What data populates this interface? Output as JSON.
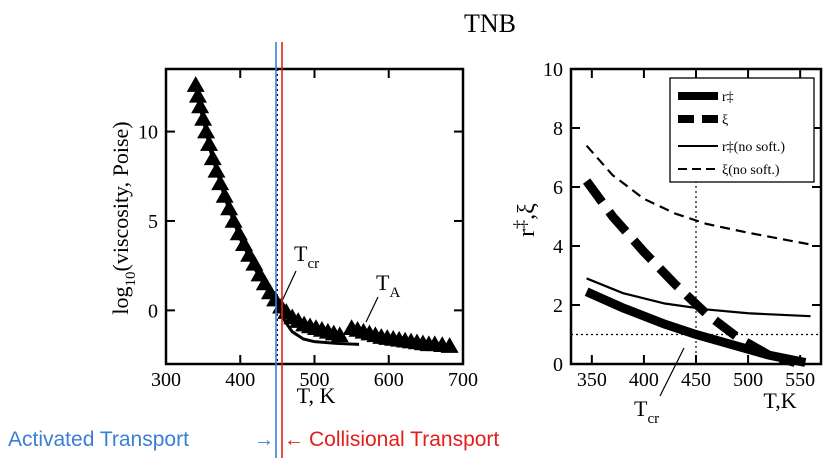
{
  "figure_title": "TNB",
  "colors": {
    "activated": "#3a7fd5",
    "collisional": "#e0201b",
    "ink": "#000000"
  },
  "annotations": {
    "activated": "Activated Transport",
    "collisional": "Collisional Transport",
    "arrow_left": "→",
    "arrow_right": "←"
  },
  "chart_data": [
    {
      "type": "scatter",
      "title": "",
      "xlabel": "T, K",
      "ylabel": "log10(viscosity, Poise)",
      "ylabel_parts": {
        "pre": "log",
        "sub": "10",
        "post": "(viscosity, Poise)"
      },
      "xlim": [
        300,
        700
      ],
      "ylim": [
        -3,
        13.5
      ],
      "xticks": [
        300,
        400,
        500,
        600,
        700
      ],
      "yticks": [
        0,
        5,
        10
      ],
      "points": [
        [
          340,
          12.6
        ],
        [
          343,
          12.0
        ],
        [
          346,
          11.4
        ],
        [
          350,
          10.7
        ],
        [
          354,
          10.0
        ],
        [
          358,
          9.3
        ],
        [
          363,
          8.5
        ],
        [
          368,
          7.8
        ],
        [
          373,
          7.1
        ],
        [
          379,
          6.4
        ],
        [
          385,
          5.7
        ],
        [
          391,
          5.0
        ],
        [
          398,
          4.3
        ],
        [
          405,
          3.7
        ],
        [
          412,
          3.1
        ],
        [
          419,
          2.6
        ],
        [
          426,
          2.0
        ],
        [
          433,
          1.5
        ],
        [
          440,
          1.0
        ],
        [
          447,
          0.6
        ],
        [
          455,
          0.2
        ],
        [
          462,
          -0.1
        ],
        [
          470,
          -0.4
        ],
        [
          478,
          -0.6
        ],
        [
          486,
          -0.8
        ],
        [
          494,
          -0.9
        ],
        [
          502,
          -1.0
        ],
        [
          510,
          -1.1
        ],
        [
          518,
          -1.2
        ],
        [
          526,
          -1.3
        ],
        [
          534,
          -1.4
        ],
        [
          550,
          -1.0
        ],
        [
          558,
          -1.1
        ],
        [
          566,
          -1.2
        ],
        [
          574,
          -1.3
        ],
        [
          582,
          -1.4
        ],
        [
          590,
          -1.5
        ],
        [
          598,
          -1.55
        ],
        [
          606,
          -1.6
        ],
        [
          614,
          -1.65
        ],
        [
          622,
          -1.7
        ],
        [
          630,
          -1.75
        ],
        [
          638,
          -1.8
        ],
        [
          646,
          -1.85
        ],
        [
          654,
          -1.9
        ],
        [
          662,
          -1.9
        ],
        [
          672,
          -1.95
        ],
        [
          682,
          -2.0
        ]
      ],
      "fit_curve": [
        [
          340,
          12.4
        ],
        [
          360,
          8.9
        ],
        [
          380,
          6.2
        ],
        [
          400,
          4.0
        ],
        [
          420,
          2.3
        ],
        [
          440,
          0.9
        ],
        [
          452,
          0.3
        ],
        [
          460,
          -0.6
        ],
        [
          470,
          -1.2
        ],
        [
          485,
          -1.6
        ],
        [
          500,
          -1.75
        ],
        [
          530,
          -1.85
        ],
        [
          560,
          -1.9
        ]
      ],
      "vline_dotted": 450,
      "labels": {
        "tcr": {
          "base": "T",
          "sub": "cr"
        },
        "ta": {
          "base": "T",
          "sub": "A"
        }
      }
    },
    {
      "type": "line",
      "title": "",
      "xlabel": "T,K",
      "ylabel_parts": {
        "r": "r",
        "dagger": "‡",
        "sep": ",",
        "xi": "ξ"
      },
      "xlim": [
        330,
        570
      ],
      "ylim": [
        0,
        10
      ],
      "xticks": [
        350,
        400,
        450,
        500,
        550
      ],
      "yticks": [
        0,
        2,
        4,
        6,
        8,
        10
      ],
      "vline_dotted": 450,
      "hline_dotted": 1,
      "series": [
        {
          "name": "r‡",
          "style": "thick-solid",
          "points": [
            [
              345,
              2.45
            ],
            [
              380,
              1.9
            ],
            [
              420,
              1.35
            ],
            [
              450,
              1.0
            ],
            [
              480,
              0.7
            ],
            [
              520,
              0.3
            ],
            [
              555,
              0.05
            ]
          ]
        },
        {
          "name": "ξ",
          "style": "thick-dashed",
          "points": [
            [
              345,
              6.2
            ],
            [
              370,
              5.0
            ],
            [
              400,
              3.8
            ],
            [
              430,
              2.7
            ],
            [
              460,
              1.7
            ],
            [
              490,
              0.9
            ],
            [
              520,
              0.3
            ],
            [
              545,
              0.05
            ]
          ]
        },
        {
          "name": "r‡(no soft.)",
          "style": "thin-solid",
          "points": [
            [
              345,
              2.9
            ],
            [
              380,
              2.4
            ],
            [
              420,
              2.05
            ],
            [
              460,
              1.85
            ],
            [
              500,
              1.72
            ],
            [
              560,
              1.62
            ]
          ]
        },
        {
          "name": "ξ(no soft.)",
          "style": "thin-dashed",
          "points": [
            [
              345,
              7.4
            ],
            [
              370,
              6.4
            ],
            [
              400,
              5.6
            ],
            [
              430,
              5.1
            ],
            [
              460,
              4.75
            ],
            [
              500,
              4.45
            ],
            [
              560,
              4.05
            ]
          ]
        }
      ],
      "legend": [
        {
          "label": "r‡",
          "style": "thick-solid"
        },
        {
          "label": "ξ",
          "style": "thick-dashed"
        },
        {
          "label": "r‡(no soft.)",
          "style": "thin-solid"
        },
        {
          "label": "ξ(no soft.)",
          "style": "thin-dashed"
        }
      ],
      "legend_position": "top-right",
      "labels": {
        "tcr": {
          "base": "T",
          "sub": "cr"
        }
      }
    }
  ]
}
